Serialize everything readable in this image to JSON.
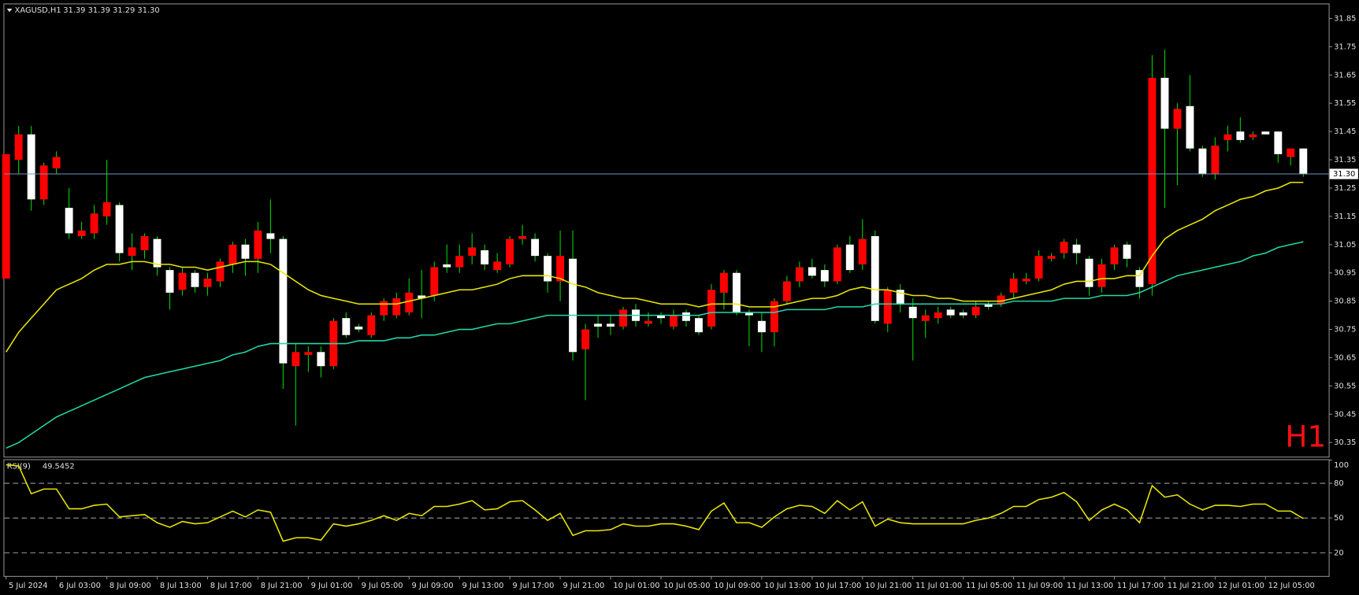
{
  "chart_data": [
    {
      "type": "candlestick",
      "symbol": "XAGUSD,H1",
      "ohlc_text": "31.39 31.39 31.29 31.30",
      "timeframe_label": "H1",
      "categories": [
        "5 Jul 2024",
        null,
        null,
        null,
        "6 Jul 03:00",
        null,
        null,
        null,
        "8 Jul 09:00",
        null,
        null,
        null,
        "8 Jul 13:00",
        null,
        null,
        null,
        "8 Jul 17:00",
        null,
        null,
        null,
        "8 Jul 21:00",
        null,
        null,
        null,
        "9 Jul 01:00",
        null,
        null,
        null,
        "9 Jul 05:00",
        null,
        null,
        null,
        "9 Jul 09:00",
        null,
        null,
        null,
        "9 Jul 13:00",
        null,
        null,
        null,
        "9 Jul 17:00",
        null,
        null,
        null,
        "9 Jul 21:00",
        null,
        null,
        null,
        "10 Jul 01:00",
        null,
        null,
        null,
        "10 Jul 05:00",
        null,
        null,
        null,
        "10 Jul 09:00",
        null,
        null,
        null,
        "10 Jul 13:00",
        null,
        null,
        null,
        "10 Jul 17:00",
        null,
        null,
        null,
        "10 Jul 21:00",
        null,
        null,
        null,
        "11 Jul 01:00",
        null,
        null,
        null,
        "11 Jul 05:00",
        null,
        null,
        null,
        "11 Jul 09:00",
        null,
        null,
        null,
        "11 Jul 13:00",
        null,
        null,
        null,
        "11 Jul 17:00",
        null,
        null,
        null,
        "11 Jul 21:00",
        null,
        null,
        null,
        "12 Jul 01:00",
        null,
        null,
        null,
        "12 Jul 05:00",
        null,
        null,
        null
      ],
      "open": [
        30.93,
        31.35,
        31.44,
        31.21,
        31.32,
        31.18,
        31.08,
        31.09,
        31.15,
        31.19,
        31.01,
        31.03,
        31.07,
        30.96,
        30.89,
        30.95,
        30.9,
        30.92,
        30.98,
        31.05,
        31.0,
        31.09,
        31.07,
        30.62,
        30.66,
        30.67,
        30.62,
        30.79,
        30.76,
        30.73,
        30.8,
        30.8,
        30.81,
        30.87,
        30.87,
        30.98,
        30.97,
        31.01,
        31.03,
        30.96,
        30.98,
        31.07,
        31.07,
        31.01,
        30.92,
        31.0,
        30.68,
        30.77,
        30.77,
        30.76,
        30.82,
        30.77,
        30.8,
        30.76,
        30.81,
        30.79,
        30.76,
        30.88,
        30.95,
        30.81,
        30.78,
        30.74,
        30.85,
        30.92,
        30.97,
        30.96,
        30.92,
        31.05,
        30.98,
        31.08,
        30.77,
        30.89,
        30.83,
        30.78,
        30.79,
        30.82,
        30.81,
        30.8,
        30.84,
        30.84,
        30.88,
        30.92,
        30.93,
        31.0,
        31.02,
        31.05,
        31.0,
        30.9,
        30.98,
        31.05,
        30.96,
        30.91,
        31.64,
        31.46,
        31.54,
        31.39,
        31.3,
        31.42,
        31.45,
        31.43,
        31.45,
        31.45,
        31.36,
        31.39
      ],
      "high": [
        31.37,
        31.47,
        31.47,
        31.34,
        31.38,
        31.25,
        31.13,
        31.19,
        31.35,
        31.2,
        31.09,
        31.09,
        31.08,
        30.97,
        30.97,
        30.96,
        30.95,
        31.0,
        31.06,
        31.07,
        31.13,
        31.21,
        31.08,
        30.7,
        30.69,
        30.69,
        30.79,
        30.81,
        30.77,
        30.81,
        30.86,
        30.88,
        30.93,
        30.96,
        30.99,
        31.05,
        31.05,
        31.09,
        31.05,
        31.02,
        31.08,
        31.12,
        31.09,
        31.02,
        31.1,
        31.1,
        30.77,
        30.8,
        30.8,
        30.83,
        30.84,
        30.81,
        30.81,
        30.82,
        30.82,
        30.8,
        30.91,
        30.96,
        30.96,
        30.82,
        30.81,
        30.86,
        30.94,
        30.99,
        31.0,
        30.98,
        31.05,
        31.08,
        31.14,
        31.1,
        30.9,
        30.91,
        30.86,
        30.82,
        30.83,
        30.83,
        30.82,
        30.85,
        30.85,
        30.88,
        30.95,
        30.95,
        31.03,
        31.02,
        31.07,
        31.07,
        31.01,
        31.0,
        31.05,
        31.06,
        30.97,
        31.72,
        31.74,
        31.55,
        31.65,
        31.4,
        31.43,
        31.47,
        31.5,
        31.45,
        31.45,
        31.45,
        31.39,
        31.39
      ],
      "low": [
        30.93,
        31.3,
        31.17,
        31.19,
        31.3,
        31.07,
        31.07,
        31.07,
        31.12,
        30.99,
        30.96,
        31.0,
        30.94,
        30.82,
        30.87,
        30.88,
        30.87,
        30.9,
        30.95,
        30.94,
        30.95,
        31.02,
        30.54,
        30.41,
        30.6,
        30.58,
        30.61,
        30.72,
        30.74,
        30.72,
        30.78,
        30.79,
        30.8,
        30.79,
        30.85,
        30.95,
        30.95,
        30.98,
        30.96,
        30.95,
        30.97,
        31.05,
        30.99,
        30.88,
        30.85,
        30.64,
        30.5,
        30.72,
        30.73,
        30.75,
        30.76,
        30.76,
        30.77,
        30.75,
        30.76,
        30.73,
        30.75,
        30.82,
        30.8,
        30.69,
        30.67,
        30.69,
        30.84,
        30.9,
        30.93,
        30.9,
        30.91,
        30.95,
        30.96,
        30.77,
        30.74,
        30.81,
        30.64,
        30.72,
        30.77,
        30.79,
        30.79,
        30.79,
        30.82,
        30.83,
        30.86,
        30.91,
        30.92,
        30.99,
        31.0,
        30.98,
        30.87,
        30.88,
        30.96,
        30.97,
        30.86,
        30.87,
        31.18,
        31.26,
        31.38,
        31.29,
        31.28,
        31.38,
        31.41,
        31.42,
        31.44,
        31.34,
        31.33,
        31.29
      ],
      "close": [
        31.37,
        31.44,
        31.21,
        31.33,
        31.36,
        31.09,
        31.1,
        31.16,
        31.2,
        31.02,
        31.04,
        31.08,
        30.97,
        30.88,
        30.95,
        30.9,
        30.93,
        30.99,
        31.05,
        31.0,
        31.1,
        31.07,
        30.63,
        30.67,
        30.67,
        30.62,
        30.78,
        30.73,
        30.75,
        30.8,
        30.85,
        30.86,
        30.88,
        30.86,
        30.97,
        30.97,
        31.01,
        31.04,
        30.98,
        30.99,
        31.07,
        31.08,
        31.01,
        30.92,
        31.01,
        30.67,
        30.75,
        30.76,
        30.76,
        30.82,
        30.78,
        30.78,
        30.79,
        30.8,
        30.78,
        30.74,
        30.89,
        30.95,
        30.81,
        30.8,
        30.74,
        30.85,
        30.92,
        30.97,
        30.94,
        30.92,
        31.04,
        30.96,
        31.07,
        30.78,
        30.89,
        30.84,
        30.79,
        30.8,
        30.81,
        30.8,
        30.8,
        30.83,
        30.83,
        30.87,
        30.93,
        30.93,
        31.01,
        31.01,
        31.06,
        31.02,
        30.9,
        30.98,
        31.04,
        31.0,
        30.9,
        31.64,
        31.46,
        31.53,
        31.39,
        31.3,
        31.4,
        31.44,
        31.42,
        31.44,
        31.44,
        31.37,
        31.39,
        31.3
      ],
      "up_color": "#ff0000",
      "down_color": "#ffffff",
      "wick_color": "#00d000",
      "overlays": [
        {
          "color": "#e8e800",
          "values": [
            30.67,
            30.74,
            30.79,
            30.84,
            30.89,
            30.91,
            30.93,
            30.96,
            30.98,
            30.98,
            30.99,
            30.99,
            30.98,
            30.98,
            30.97,
            30.97,
            30.96,
            30.97,
            30.98,
            30.99,
            30.99,
            30.98,
            30.95,
            30.92,
            30.89,
            30.87,
            30.86,
            30.85,
            30.84,
            30.84,
            30.84,
            30.84,
            30.85,
            30.86,
            30.87,
            30.88,
            30.89,
            30.89,
            30.9,
            30.91,
            30.93,
            30.94,
            30.94,
            30.94,
            30.93,
            30.91,
            30.9,
            30.88,
            30.87,
            30.86,
            30.86,
            30.85,
            30.84,
            30.84,
            30.84,
            30.83,
            30.84,
            30.84,
            30.84,
            30.83,
            30.83,
            30.83,
            30.84,
            30.85,
            30.86,
            30.86,
            30.87,
            30.89,
            30.9,
            30.89,
            30.89,
            30.88,
            30.87,
            30.87,
            30.86,
            30.86,
            30.85,
            30.85,
            30.85,
            30.85,
            30.86,
            30.87,
            30.88,
            30.89,
            30.91,
            30.92,
            30.92,
            30.93,
            30.93,
            30.94,
            30.94,
            31.01,
            31.07,
            31.1,
            31.12,
            31.14,
            31.17,
            31.19,
            31.21,
            31.22,
            31.24,
            31.25,
            31.27,
            31.27
          ]
        },
        {
          "color": "#20d8a8",
          "values": [
            30.33,
            30.35,
            30.38,
            30.41,
            30.44,
            30.46,
            30.48,
            30.5,
            30.52,
            30.54,
            30.56,
            30.58,
            30.59,
            30.6,
            30.61,
            30.62,
            30.63,
            30.64,
            30.66,
            30.67,
            30.69,
            30.7,
            30.7,
            30.7,
            30.7,
            30.7,
            30.7,
            30.7,
            30.71,
            30.71,
            30.71,
            30.72,
            30.72,
            30.73,
            30.73,
            30.74,
            30.75,
            30.75,
            30.76,
            30.77,
            30.77,
            30.78,
            30.79,
            30.8,
            30.8,
            30.8,
            30.8,
            30.8,
            30.8,
            30.8,
            30.8,
            30.8,
            30.8,
            30.8,
            30.8,
            30.8,
            30.81,
            30.81,
            30.81,
            30.81,
            30.81,
            30.81,
            30.82,
            30.82,
            30.82,
            30.82,
            30.83,
            30.83,
            30.83,
            30.84,
            30.84,
            30.84,
            30.84,
            30.84,
            30.84,
            30.84,
            30.84,
            30.84,
            30.84,
            30.84,
            30.85,
            30.85,
            30.85,
            30.85,
            30.86,
            30.86,
            30.86,
            30.87,
            30.87,
            30.87,
            30.88,
            30.9,
            30.92,
            30.94,
            30.95,
            30.96,
            30.97,
            30.98,
            30.99,
            31.01,
            31.02,
            31.04,
            31.05,
            31.06
          ]
        }
      ],
      "current_price": {
        "value": 31.3,
        "label": "31.30"
      },
      "current_price_color": "#6f97b5",
      "ylim": [
        30.3,
        31.9
      ],
      "yticks": [
        31.85,
        31.75,
        31.65,
        31.55,
        31.45,
        31.35,
        31.25,
        31.15,
        31.05,
        30.95,
        30.85,
        30.75,
        30.65,
        30.55,
        30.45,
        30.35
      ],
      "grid": false
    },
    {
      "type": "line",
      "title": "RSI(9)",
      "color": "#e8e800",
      "values": [
        96,
        95,
        71,
        75,
        75,
        58,
        58,
        61,
        62,
        51,
        52,
        53,
        46,
        42,
        47,
        45,
        46,
        51,
        56,
        51,
        57,
        55,
        30,
        33,
        33,
        31,
        45,
        43,
        45,
        48,
        52,
        48,
        54,
        52,
        60,
        60,
        62,
        65,
        57,
        58,
        64,
        65,
        57,
        48,
        54,
        35,
        39,
        39,
        40,
        45,
        43,
        43,
        45,
        45,
        43,
        40,
        56,
        63,
        46,
        46,
        42,
        51,
        58,
        61,
        60,
        54,
        65,
        57,
        64,
        43,
        49,
        46,
        45,
        45,
        45,
        45,
        45,
        48,
        50,
        54,
        60,
        60,
        66,
        68,
        72,
        64,
        48,
        57,
        62,
        57,
        46,
        78,
        68,
        70,
        62,
        57,
        61,
        61,
        60,
        62,
        62,
        56,
        56,
        49.5452
      ],
      "ylim": [
        0,
        100
      ],
      "yticks": [
        100,
        80,
        50,
        20
      ],
      "grid": false
    }
  ]
}
